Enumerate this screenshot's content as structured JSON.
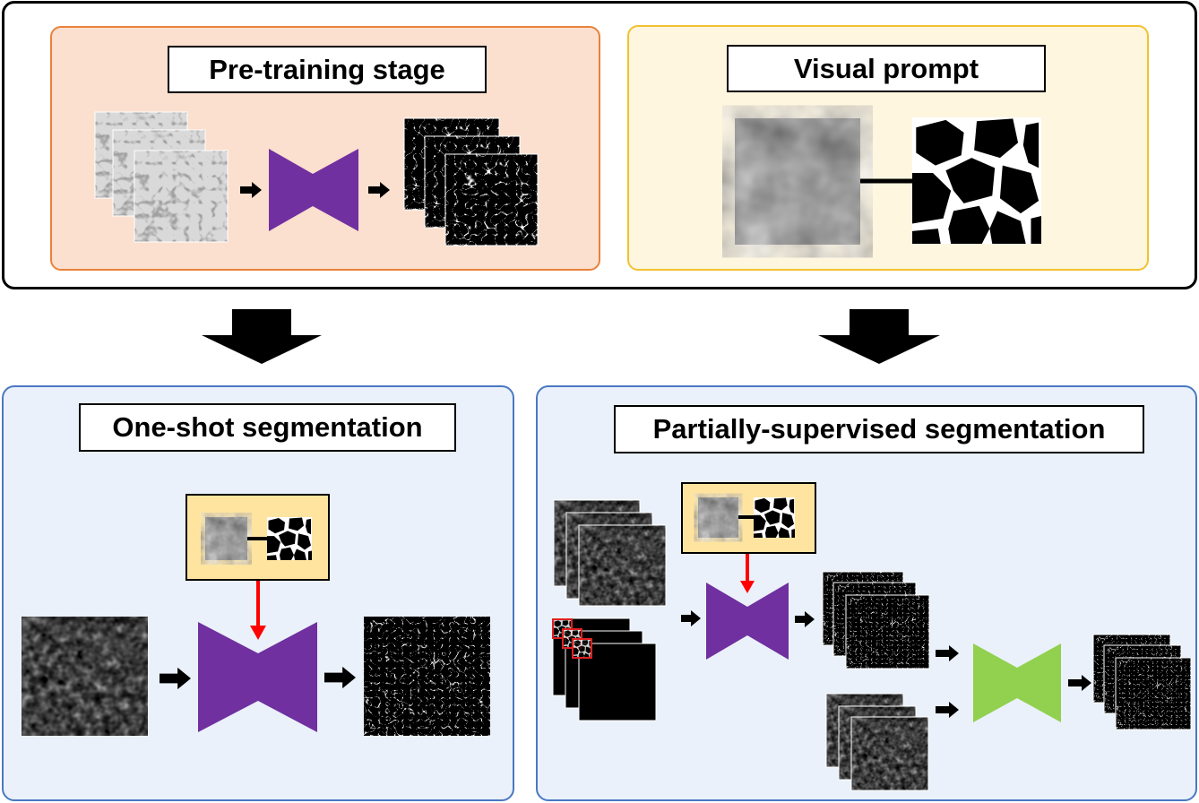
{
  "panels": {
    "pretraining": {
      "title": "Pre-training stage"
    },
    "visual_prompt": {
      "title": "Visual prompt"
    },
    "one_shot": {
      "title": "One-shot segmentation"
    },
    "partially_supervised": {
      "title": "Partially-supervised segmentation"
    }
  },
  "colors": {
    "pretraining_border": "#E8823A",
    "pretraining_fill": "#FBDFCF",
    "visual_prompt_border": "#F2C12E",
    "visual_prompt_fill": "#FFF6E0",
    "lower_border": "#4A78C2",
    "lower_fill": "#EAF1FA",
    "prompt_box_fill": "#FFE4A0",
    "model_purple": "#7030A0",
    "model_green": "#92D050",
    "prompt_arrow": "#FF0000",
    "patch_box": "#E02020"
  },
  "icons": {
    "model": "bowtie-network-icon",
    "flow": "arrow-right-icon",
    "stage": "big-arrow-down-icon"
  }
}
